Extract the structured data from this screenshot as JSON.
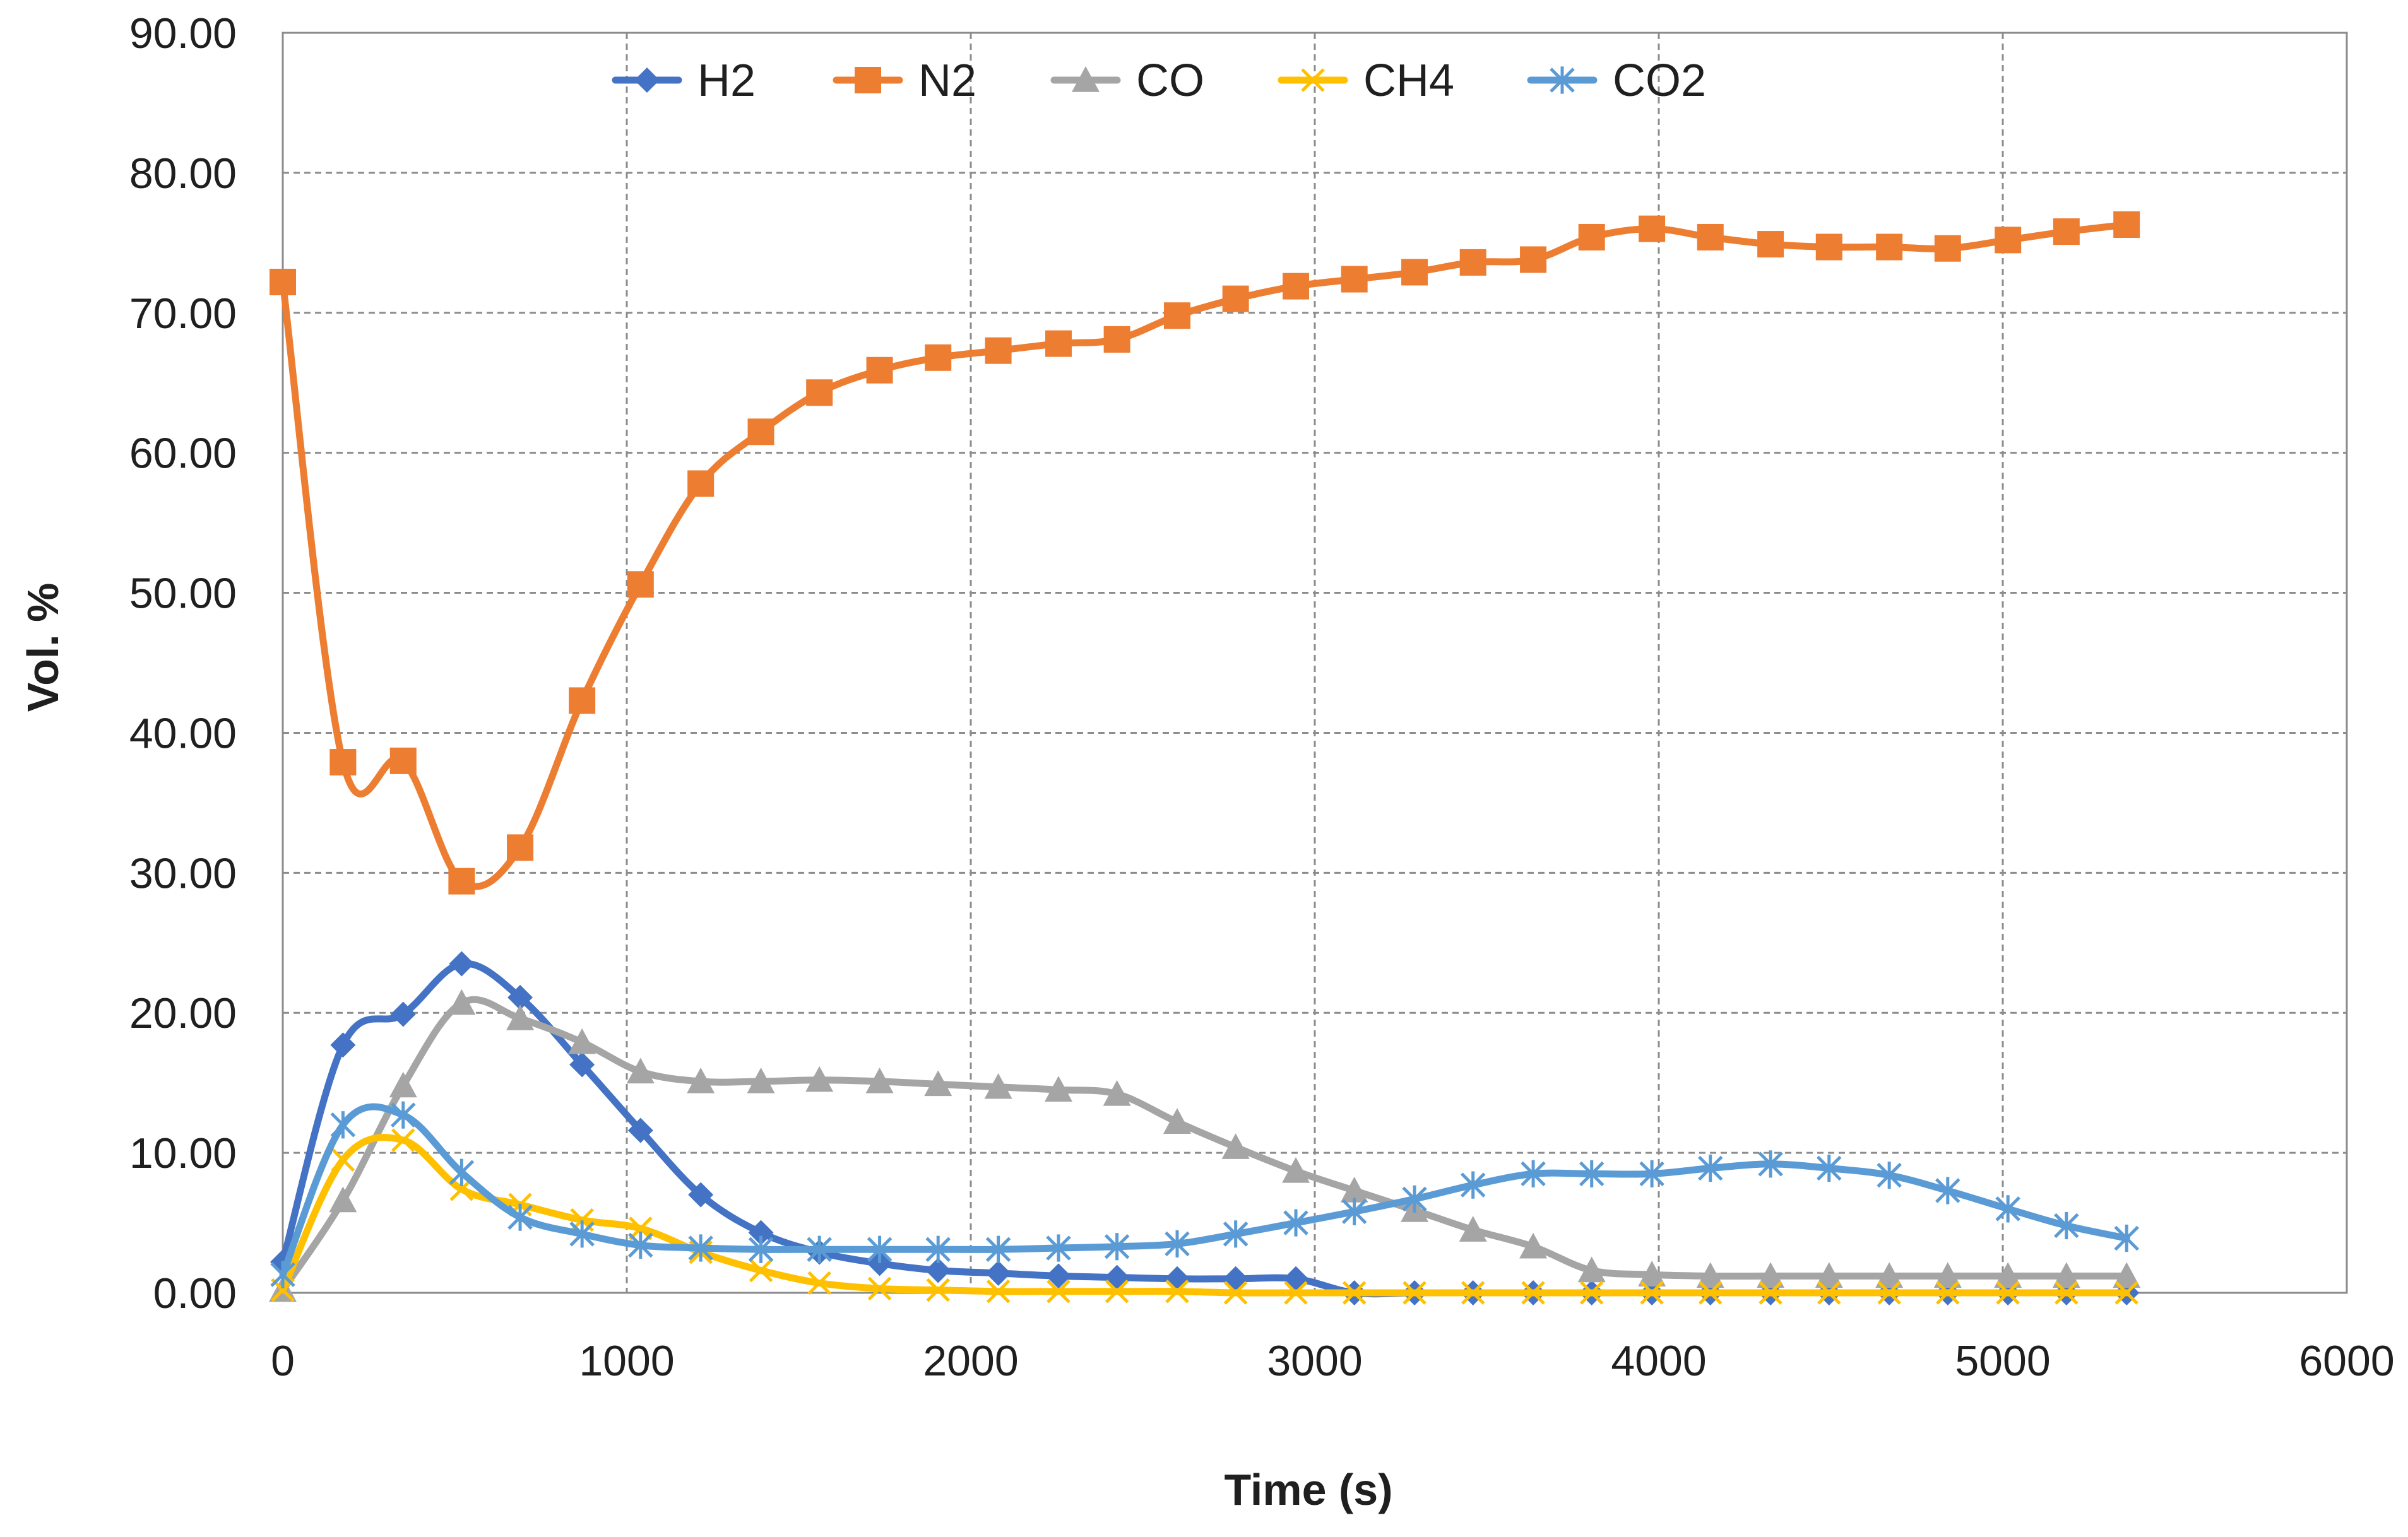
{
  "chart_data": {
    "type": "line",
    "title": "",
    "xlabel": "Time (s)",
    "ylabel": "Vol. %",
    "xlim": [
      0,
      6000
    ],
    "ylim": [
      0,
      90
    ],
    "xticks": [
      "0",
      "1000",
      "2000",
      "3000",
      "4000",
      "5000",
      "6000"
    ],
    "yticks": [
      "0.00",
      "10.00",
      "20.00",
      "30.00",
      "40.00",
      "50.00",
      "60.00",
      "70.00",
      "80.00",
      "90.00"
    ],
    "grid": true,
    "legend_position": "top",
    "x": [
      0,
      175,
      350,
      520,
      690,
      870,
      1040,
      1215,
      1390,
      1560,
      1735,
      1905,
      2080,
      2255,
      2425,
      2600,
      2770,
      2945,
      3115,
      3290,
      3460,
      3635,
      3805,
      3980,
      4150,
      4325,
      4495,
      4670,
      4840,
      5015,
      5185,
      5360
    ],
    "series": [
      {
        "name": "H2",
        "color": "#4472C4",
        "marker": "diamond",
        "values": [
          2.2,
          17.7,
          19.9,
          23.5,
          21.1,
          16.3,
          11.6,
          7.0,
          4.3,
          2.9,
          2.1,
          1.6,
          1.4,
          1.2,
          1.1,
          1.0,
          1.0,
          1.0,
          0,
          0,
          0,
          0,
          0,
          0,
          0,
          0,
          0,
          0,
          0,
          0,
          0,
          0
        ]
      },
      {
        "name": "N2",
        "color": "#ED7D31",
        "marker": "square",
        "values": [
          72.2,
          37.9,
          38.0,
          29.4,
          31.8,
          42.3,
          50.6,
          57.8,
          61.5,
          64.3,
          65.9,
          66.8,
          67.3,
          67.8,
          68.1,
          69.8,
          71.0,
          71.9,
          72.4,
          72.9,
          73.6,
          73.8,
          75.4,
          76.0,
          75.4,
          74.9,
          74.7,
          74.7,
          74.6,
          75.2,
          75.8,
          76.3
        ]
      },
      {
        "name": "CO",
        "color": "#A5A5A5",
        "marker": "triangle",
        "values": [
          0.2,
          6.6,
          14.8,
          20.7,
          19.6,
          17.9,
          15.8,
          15.1,
          15.1,
          15.2,
          15.1,
          14.9,
          14.7,
          14.5,
          14.2,
          12.2,
          10.4,
          8.7,
          7.3,
          5.9,
          4.5,
          3.3,
          1.6,
          1.3,
          1.2,
          1.2,
          1.2,
          1.2,
          1.2,
          1.2,
          1.2,
          1.2
        ]
      },
      {
        "name": "CH4",
        "color": "#FFC000",
        "marker": "x",
        "values": [
          0.2,
          9.5,
          10.9,
          7.4,
          6.3,
          5.2,
          4.6,
          2.9,
          1.6,
          0.7,
          0.3,
          0.2,
          0.1,
          0.1,
          0.1,
          0.1,
          0,
          0,
          0,
          0,
          0,
          0,
          0,
          0,
          0,
          0,
          0,
          0,
          0,
          0,
          0,
          0
        ]
      },
      {
        "name": "CO2",
        "color": "#5B9BD5",
        "marker": "star",
        "values": [
          1.3,
          12.0,
          12.7,
          8.6,
          5.4,
          4.2,
          3.4,
          3.2,
          3.1,
          3.1,
          3.1,
          3.1,
          3.1,
          3.2,
          3.3,
          3.5,
          4.2,
          5.0,
          5.8,
          6.7,
          7.7,
          8.5,
          8.5,
          8.5,
          8.9,
          9.2,
          8.9,
          8.4,
          7.3,
          6.0,
          4.8,
          3.9
        ]
      }
    ]
  }
}
